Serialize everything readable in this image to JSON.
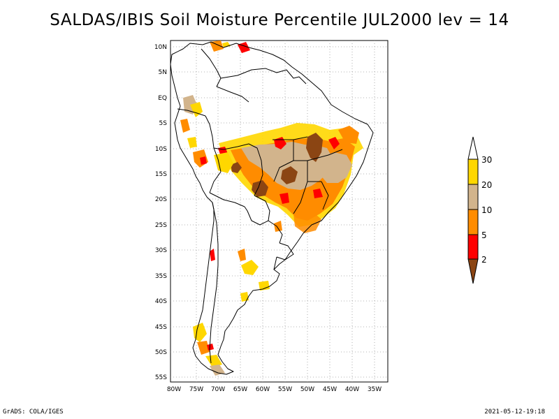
{
  "title": "SALDAS/IBIS Soil Moisture Percentile JUL2000 lev = 14",
  "map": {
    "lat_labels": [
      "10N",
      "5N",
      "EQ",
      "5S",
      "10S",
      "15S",
      "20S",
      "25S",
      "30S",
      "35S",
      "40S",
      "45S",
      "50S",
      "55S"
    ],
    "lon_labels": [
      "80W",
      "75W",
      "70W",
      "65W",
      "60W",
      "55W",
      "50W",
      "45W",
      "40W",
      "35W"
    ]
  },
  "colorbar": {
    "labels": [
      "30",
      "20",
      "10",
      "5",
      "2"
    ],
    "colors": {
      "lt2": "#8b4513",
      "2to5": "#ff0000",
      "5to10": "#ff8c00",
      "10to20": "#d2b48c",
      "20to30": "#ffd700",
      "gt30": "#ffffff"
    }
  },
  "footer": {
    "left": "GrADS: COLA/IGES",
    "right": "2021-05-12-19:18"
  }
}
